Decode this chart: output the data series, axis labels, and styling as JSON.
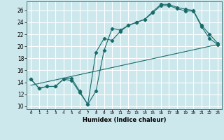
{
  "title": "",
  "xlabel": "Humidex (Indice chaleur)",
  "bg_color": "#cce8ec",
  "grid_color": "#ffffff",
  "line_color": "#1a6b6b",
  "xlim": [
    -0.5,
    23.5
  ],
  "ylim": [
    9.5,
    27.5
  ],
  "xticks": [
    0,
    1,
    2,
    3,
    4,
    5,
    6,
    7,
    8,
    9,
    10,
    11,
    12,
    13,
    14,
    15,
    16,
    17,
    18,
    19,
    20,
    21,
    22,
    23
  ],
  "yticks": [
    10,
    12,
    14,
    16,
    18,
    20,
    22,
    24,
    26
  ],
  "line1_x": [
    0,
    1,
    2,
    3,
    4,
    5,
    6,
    7,
    8,
    9,
    10,
    11,
    12,
    13,
    14,
    15,
    16,
    17,
    18,
    19,
    20,
    21,
    22,
    23
  ],
  "line1_y": [
    14.5,
    13.0,
    13.3,
    13.3,
    14.5,
    14.7,
    12.5,
    10.3,
    12.5,
    19.3,
    23.0,
    22.7,
    23.5,
    24.0,
    24.5,
    25.8,
    27.0,
    27.0,
    26.5,
    26.2,
    26.0,
    23.5,
    22.0,
    20.5
  ],
  "line2_x": [
    0,
    1,
    2,
    3,
    4,
    5,
    6,
    7,
    8,
    9,
    10,
    11,
    12,
    13,
    14,
    15,
    16,
    17,
    18,
    19,
    20,
    21,
    22,
    23
  ],
  "line2_y": [
    14.5,
    13.0,
    13.3,
    13.3,
    14.5,
    14.3,
    12.3,
    10.3,
    19.0,
    21.3,
    21.0,
    22.5,
    23.5,
    24.0,
    24.5,
    25.6,
    26.8,
    26.8,
    26.3,
    25.9,
    25.9,
    23.3,
    21.3,
    20.3
  ],
  "line3_x": [
    0,
    23
  ],
  "line3_y": [
    13.5,
    20.3
  ]
}
